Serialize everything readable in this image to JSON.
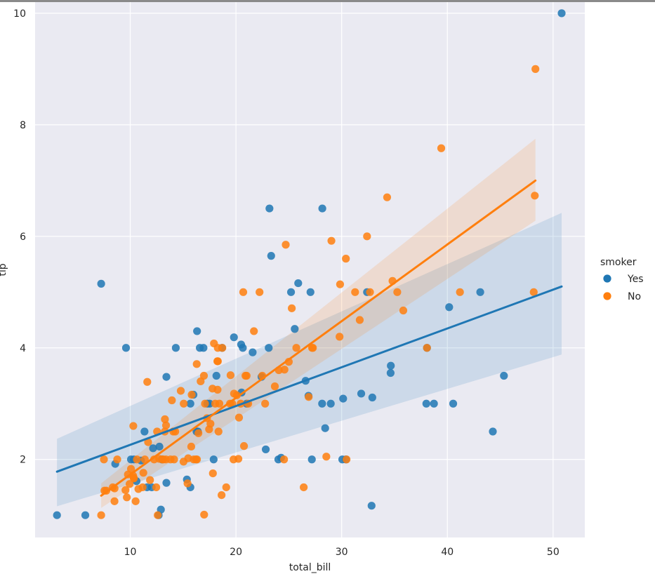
{
  "chart_data": {
    "type": "scatter",
    "xlabel": "total_bill",
    "ylabel": "tip",
    "xlim": [
      1.0,
      53.0
    ],
    "ylim": [
      0.6,
      10.2
    ],
    "xticks": [
      10,
      20,
      30,
      40,
      50
    ],
    "yticks": [
      2,
      4,
      6,
      8,
      10
    ],
    "grid": true,
    "legend": {
      "title": "smoker",
      "placement": "right"
    },
    "colors": {
      "Yes": "#1f77b4",
      "No": "#ff7f0e",
      "background": "#eaeaf2",
      "grid": "#ffffff"
    },
    "series": [
      {
        "name": "Yes",
        "color": "#1f77b4",
        "points": [
          [
            3.07,
            1.0
          ],
          [
            5.75,
            1.0
          ],
          [
            7.25,
            5.15
          ],
          [
            8.58,
            1.92
          ],
          [
            9.6,
            4.0
          ],
          [
            10.07,
            2.0
          ],
          [
            10.34,
            2.0
          ],
          [
            10.59,
            1.61
          ],
          [
            11.02,
            1.98
          ],
          [
            11.35,
            2.5
          ],
          [
            11.59,
            1.5
          ],
          [
            12.03,
            1.5
          ],
          [
            12.16,
            2.2
          ],
          [
            12.76,
            2.23
          ],
          [
            12.9,
            1.1
          ],
          [
            12.69,
            1.0
          ],
          [
            13.0,
            2.0
          ],
          [
            13.42,
            3.48
          ],
          [
            13.42,
            1.58
          ],
          [
            14.31,
            4.0
          ],
          [
            15.36,
            1.64
          ],
          [
            15.69,
            1.5
          ],
          [
            15.69,
            3.0
          ],
          [
            15.98,
            3.16
          ],
          [
            16.27,
            2.5
          ],
          [
            16.32,
            4.3
          ],
          [
            16.4,
            2.5
          ],
          [
            16.58,
            4.0
          ],
          [
            16.93,
            4.0
          ],
          [
            17.29,
            3.0
          ],
          [
            17.51,
            3.0
          ],
          [
            17.89,
            2.0
          ],
          [
            18.15,
            3.5
          ],
          [
            18.69,
            4.0
          ],
          [
            19.81,
            4.19
          ],
          [
            20.49,
            4.06
          ],
          [
            20.65,
            4.0
          ],
          [
            20.53,
            3.2
          ],
          [
            21.01,
            3.0
          ],
          [
            21.58,
            3.92
          ],
          [
            22.82,
            2.18
          ],
          [
            22.42,
            3.48
          ],
          [
            23.1,
            4.0
          ],
          [
            23.33,
            5.65
          ],
          [
            23.17,
            6.5
          ],
          [
            24.01,
            2.0
          ],
          [
            24.27,
            2.03
          ],
          [
            25.21,
            5.0
          ],
          [
            25.56,
            4.34
          ],
          [
            25.89,
            5.16
          ],
          [
            26.59,
            3.41
          ],
          [
            26.86,
            3.14
          ],
          [
            27.05,
            5.0
          ],
          [
            27.18,
            2.0
          ],
          [
            28.17,
            6.5
          ],
          [
            28.15,
            3.0
          ],
          [
            28.44,
            2.56
          ],
          [
            28.97,
            3.0
          ],
          [
            30.06,
            2.0
          ],
          [
            30.4,
            2.0
          ],
          [
            30.14,
            3.09
          ],
          [
            32.4,
            5.0
          ],
          [
            31.85,
            3.18
          ],
          [
            32.83,
            1.17
          ],
          [
            32.9,
            3.11
          ],
          [
            34.63,
            3.55
          ],
          [
            34.65,
            3.68
          ],
          [
            38.07,
            4.0
          ],
          [
            38.01,
            3.0
          ],
          [
            38.73,
            3.0
          ],
          [
            40.17,
            4.73
          ],
          [
            40.55,
            3.0
          ],
          [
            43.11,
            5.0
          ],
          [
            44.3,
            2.5
          ],
          [
            45.35,
            3.5
          ],
          [
            50.81,
            10.0
          ]
        ],
        "regression_line": {
          "x": [
            3.07,
            50.81
          ],
          "y": [
            1.78,
            5.1
          ]
        },
        "confidence_band": {
          "x": [
            3.07,
            50.81
          ],
          "lower": [
            1.16,
            3.88
          ],
          "upper": [
            2.37,
            6.42
          ]
        }
      },
      {
        "name": "No",
        "color": "#ff7f0e",
        "points": [
          [
            7.25,
            1.0
          ],
          [
            7.51,
            2.0
          ],
          [
            7.56,
            1.44
          ],
          [
            7.74,
            1.44
          ],
          [
            8.35,
            1.5
          ],
          [
            8.52,
            1.48
          ],
          [
            8.77,
            2.0
          ],
          [
            8.51,
            1.25
          ],
          [
            9.55,
            1.45
          ],
          [
            9.68,
            1.32
          ],
          [
            9.78,
            1.73
          ],
          [
            9.94,
            1.56
          ],
          [
            10.07,
            1.83
          ],
          [
            10.29,
            2.6
          ],
          [
            10.27,
            1.71
          ],
          [
            10.33,
            1.67
          ],
          [
            10.34,
            1.66
          ],
          [
            10.51,
            1.25
          ],
          [
            10.63,
            2.0
          ],
          [
            10.77,
            1.47
          ],
          [
            11.17,
            1.5
          ],
          [
            11.24,
            1.76
          ],
          [
            11.38,
            2.0
          ],
          [
            11.61,
            3.39
          ],
          [
            11.69,
            2.31
          ],
          [
            11.87,
            1.63
          ],
          [
            12.26,
            2.0
          ],
          [
            12.46,
            1.5
          ],
          [
            12.54,
            2.5
          ],
          [
            12.6,
            1.0
          ],
          [
            12.74,
            2.01
          ],
          [
            13.03,
            2.0
          ],
          [
            13.13,
            2.0
          ],
          [
            13.27,
            2.5
          ],
          [
            13.28,
            2.72
          ],
          [
            13.37,
            2.0
          ],
          [
            13.39,
            2.61
          ],
          [
            13.81,
            2.0
          ],
          [
            13.94,
            3.06
          ],
          [
            14.07,
            2.5
          ],
          [
            14.15,
            2.0
          ],
          [
            14.26,
            2.5
          ],
          [
            14.78,
            3.23
          ],
          [
            15.04,
            1.96
          ],
          [
            15.06,
            3.0
          ],
          [
            15.42,
            1.57
          ],
          [
            15.48,
            2.02
          ],
          [
            15.77,
            2.23
          ],
          [
            15.81,
            3.16
          ],
          [
            16.0,
            2.0
          ],
          [
            16.21,
            2.0
          ],
          [
            16.29,
            3.71
          ],
          [
            16.31,
            2.0
          ],
          [
            16.45,
            2.47
          ],
          [
            16.66,
            3.4
          ],
          [
            16.97,
            3.5
          ],
          [
            16.99,
            1.01
          ],
          [
            17.07,
            3.0
          ],
          [
            17.26,
            2.74
          ],
          [
            17.46,
            2.54
          ],
          [
            17.59,
            2.64
          ],
          [
            17.78,
            3.27
          ],
          [
            17.82,
            1.75
          ],
          [
            17.92,
            4.08
          ],
          [
            18.04,
            3.0
          ],
          [
            18.24,
            3.76
          ],
          [
            18.26,
            3.25
          ],
          [
            18.28,
            4.0
          ],
          [
            18.29,
            3.76
          ],
          [
            18.35,
            2.5
          ],
          [
            18.43,
            3.0
          ],
          [
            18.64,
            1.36
          ],
          [
            18.71,
            4.0
          ],
          [
            19.08,
            1.5
          ],
          [
            19.44,
            3.0
          ],
          [
            19.49,
            3.51
          ],
          [
            19.65,
            3.0
          ],
          [
            19.77,
            2.0
          ],
          [
            19.82,
            3.18
          ],
          [
            20.08,
            3.15
          ],
          [
            20.23,
            2.01
          ],
          [
            20.29,
            2.75
          ],
          [
            20.45,
            3.0
          ],
          [
            20.69,
            5.0
          ],
          [
            20.76,
            2.24
          ],
          [
            20.9,
            3.5
          ],
          [
            21.01,
            3.5
          ],
          [
            21.16,
            3.0
          ],
          [
            21.7,
            4.3
          ],
          [
            22.23,
            5.0
          ],
          [
            22.49,
            3.5
          ],
          [
            22.76,
            3.0
          ],
          [
            23.68,
            3.31
          ],
          [
            24.06,
            3.6
          ],
          [
            24.55,
            2.0
          ],
          [
            24.59,
            3.61
          ],
          [
            24.71,
            5.85
          ],
          [
            25.0,
            3.75
          ],
          [
            25.28,
            4.71
          ],
          [
            25.71,
            4.0
          ],
          [
            26.41,
            1.5
          ],
          [
            26.88,
            3.12
          ],
          [
            27.2,
            4.0
          ],
          [
            27.28,
            4.0
          ],
          [
            28.55,
            2.05
          ],
          [
            29.03,
            5.92
          ],
          [
            29.8,
            4.2
          ],
          [
            29.85,
            5.14
          ],
          [
            30.46,
            2.0
          ],
          [
            31.27,
            5.0
          ],
          [
            31.71,
            4.5
          ],
          [
            32.68,
            5.0
          ],
          [
            34.81,
            5.2
          ],
          [
            35.26,
            5.0
          ],
          [
            35.83,
            4.67
          ],
          [
            38.07,
            4.0
          ],
          [
            39.42,
            7.58
          ],
          [
            41.19,
            5.0
          ],
          [
            48.17,
            5.0
          ],
          [
            48.27,
            6.73
          ],
          [
            48.33,
            9.0
          ],
          [
            34.3,
            6.7
          ],
          [
            32.4,
            6.0
          ],
          [
            30.4,
            5.6
          ]
        ],
        "regression_line": {
          "x": [
            7.25,
            48.33
          ],
          "y": [
            1.35,
            7.0
          ]
        },
        "confidence_band": {
          "x": [
            7.25,
            48.33
          ],
          "lower": [
            1.13,
            6.28
          ],
          "upper": [
            1.57,
            7.75
          ]
        }
      }
    ]
  }
}
